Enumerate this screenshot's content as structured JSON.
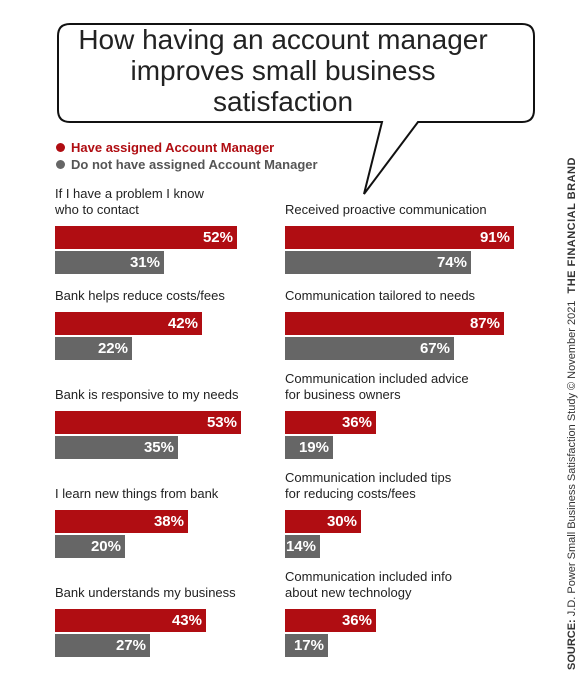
{
  "chart_data": {
    "type": "bar",
    "title": "How having an account manager improves small business satisfaction",
    "title_lines": [
      "How having an account manager",
      "improves small business satisfaction"
    ],
    "legend": [
      "Have assigned Account Manager",
      "Do not have assigned Account Manager"
    ],
    "series_colors": {
      "have": "#b00d12",
      "not": "#666666"
    },
    "orientation": "horizontal",
    "xlim": [
      0,
      100
    ],
    "panels": [
      {
        "label": [
          "If I have a problem I know",
          "who to contact"
        ],
        "have": 52,
        "not": 31
      },
      {
        "label": [
          "Bank helps reduce costs/fees"
        ],
        "have": 42,
        "not": 22
      },
      {
        "label": [
          "Bank is responsive to my needs"
        ],
        "have": 53,
        "not": 35
      },
      {
        "label": [
          "I learn new things from bank"
        ],
        "have": 38,
        "not": 20
      },
      {
        "label": [
          "Bank understands my business"
        ],
        "have": 43,
        "not": 27
      },
      {
        "label": [
          "Received proactive communication"
        ],
        "have": 91,
        "not": 74
      },
      {
        "label": [
          "Communication tailored to needs"
        ],
        "have": 87,
        "not": 67
      },
      {
        "label": [
          "Communication included advice",
          "for business owners"
        ],
        "have": 36,
        "not": 19
      },
      {
        "label": [
          "Communication included tips",
          "for reducing costs/fees"
        ],
        "have": 30,
        "not": 14
      },
      {
        "label": [
          "Communication included info",
          "about new technology"
        ],
        "have": 36,
        "not": 17
      }
    ]
  },
  "source": {
    "prefix": "SOURCE:",
    "text": "J.D. Power Small Business Satisfaction Study © November 2021",
    "brand": "THE FINANCIAL BRAND"
  }
}
